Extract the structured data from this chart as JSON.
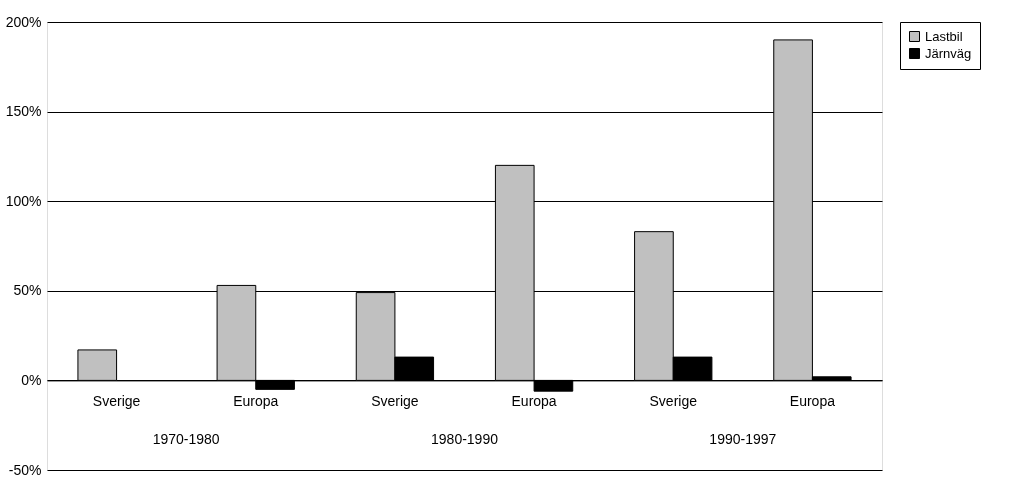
{
  "chart_data": {
    "type": "bar",
    "categories": [
      "Sverige",
      "Europa",
      "Sverige",
      "Europa",
      "Sverige",
      "Europa"
    ],
    "series": [
      {
        "name": "Lastbil",
        "color": "#c0c0c0",
        "values": [
          17,
          53,
          49,
          120,
          83,
          190
        ]
      },
      {
        "name": "Järnväg",
        "color": "#000000",
        "values": [
          null,
          -5,
          13,
          -6,
          13,
          2
        ]
      }
    ],
    "annotations": [
      "1970-1980",
      "1980-1990",
      "1990-1997"
    ],
    "ylim": [
      -50,
      200
    ],
    "yticks": [
      {
        "value": -50,
        "label": "-50%"
      },
      {
        "value": 0,
        "label": "0%"
      },
      {
        "value": 50,
        "label": "50%"
      },
      {
        "value": 100,
        "label": "100%"
      },
      {
        "value": 150,
        "label": "150%"
      },
      {
        "value": 200,
        "label": "200%"
      }
    ],
    "grid": "y",
    "legend": "right"
  }
}
